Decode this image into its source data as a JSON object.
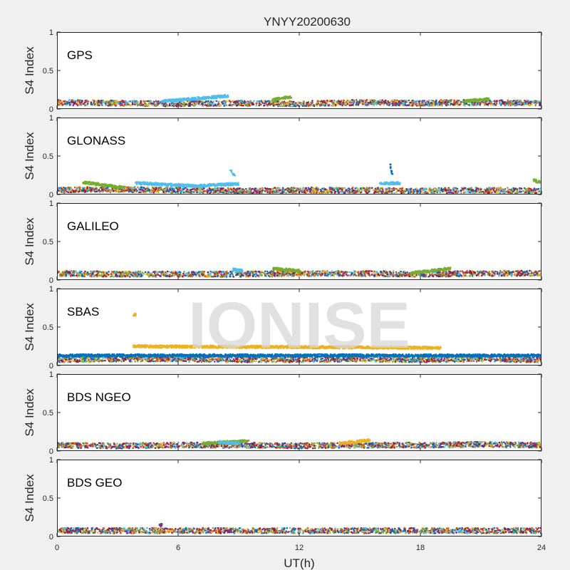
{
  "title": "YNYY20200630",
  "watermark": "IONISE",
  "chart_data": {
    "type": "scatter",
    "title": "YNYY20200630",
    "xlabel": "UT(h)",
    "ylabel": "S4 Index",
    "xlim": [
      0,
      24
    ],
    "ylim": [
      0,
      1
    ],
    "x_ticks": [
      "0",
      "6",
      "12",
      "18",
      "24"
    ],
    "y_ticks": [
      "0",
      "0.5",
      "1"
    ],
    "grid": false,
    "series_colors": [
      "#0072BD",
      "#D95319",
      "#EDB120",
      "#7E2F8E",
      "#77AC30",
      "#4DBEEE",
      "#A2142F"
    ],
    "panels": [
      {
        "label": "GPS",
        "baseline": [
          [
            0,
            0.09
          ],
          [
            3,
            0.08
          ],
          [
            6,
            0.07
          ],
          [
            9,
            0.08
          ],
          [
            12,
            0.07
          ],
          [
            15,
            0.09
          ],
          [
            18,
            0.08
          ],
          [
            21,
            0.09
          ],
          [
            24,
            0.08
          ]
        ],
        "features": [
          {
            "color": "#4DBEEE",
            "x": [
              5.2,
              8.5
            ],
            "y": [
              0.1,
              0.17
            ]
          },
          {
            "color": "#77AC30",
            "x": [
              10.7,
              11.6
            ],
            "y": [
              0.12,
              0.16
            ]
          },
          {
            "color": "#77AC30",
            "x": [
              20.2,
              21.4
            ],
            "y": [
              0.1,
              0.13
            ]
          }
        ]
      },
      {
        "label": "GLONASS",
        "baseline": [
          [
            0,
            0.06
          ],
          [
            3,
            0.07
          ],
          [
            6,
            0.06
          ],
          [
            9,
            0.05
          ],
          [
            12,
            0.06
          ],
          [
            15,
            0.06
          ],
          [
            18,
            0.05
          ],
          [
            21,
            0.06
          ],
          [
            24,
            0.05
          ]
        ],
        "features": [
          {
            "color": "#77AC30",
            "x": [
              1.3,
              3.3
            ],
            "y": [
              0.16,
              0.09
            ]
          },
          {
            "color": "#4DBEEE",
            "x": [
              3.9,
              6.9
            ],
            "y": [
              0.15,
              0.11
            ]
          },
          {
            "color": "#4DBEEE",
            "x": [
              6.9,
              9.0
            ],
            "y": [
              0.11,
              0.14
            ]
          },
          {
            "color": "#4DBEEE",
            "x": [
              8.6,
              8.8
            ],
            "y": [
              0.32,
              0.24
            ]
          },
          {
            "color": "#0072BD",
            "x": [
              16.5,
              16.6
            ],
            "y": [
              0.4,
              0.25
            ]
          },
          {
            "color": "#4DBEEE",
            "x": [
              16.0,
              17.0
            ],
            "y": [
              0.14,
              0.15
            ]
          },
          {
            "color": "#77AC30",
            "x": [
              23.6,
              24.0
            ],
            "y": [
              0.19,
              0.15
            ]
          }
        ]
      },
      {
        "label": "GALILEO",
        "baseline": [
          [
            0,
            0.09
          ],
          [
            3,
            0.08
          ],
          [
            6,
            0.08
          ],
          [
            9,
            0.08
          ],
          [
            12,
            0.09
          ],
          [
            15,
            0.09
          ],
          [
            18,
            0.08
          ],
          [
            21,
            0.09
          ],
          [
            24,
            0.09
          ]
        ],
        "features": [
          {
            "color": "#77AC30",
            "x": [
              10.7,
              12.0
            ],
            "y": [
              0.15,
              0.12
            ]
          },
          {
            "color": "#77AC30",
            "x": [
              17.5,
              19.5
            ],
            "y": [
              0.09,
              0.15
            ]
          },
          {
            "color": "#4DBEEE",
            "x": [
              8.7,
              9.2
            ],
            "y": [
              0.14,
              0.12
            ]
          }
        ]
      },
      {
        "label": "SBAS",
        "baseline": [
          [
            0,
            0.08
          ],
          [
            3,
            0.09
          ],
          [
            6,
            0.09
          ],
          [
            9,
            0.08
          ],
          [
            12,
            0.08
          ],
          [
            15,
            0.09
          ],
          [
            18,
            0.08
          ],
          [
            21,
            0.09
          ],
          [
            24,
            0.08
          ]
        ],
        "features": [
          {
            "color": "#EDB120",
            "x": [
              3.8,
              19.0
            ],
            "y": [
              0.25,
              0.23
            ]
          },
          {
            "color": "#EDB120",
            "x": [
              3.8,
              3.9
            ],
            "y": [
              0.66,
              0.66
            ]
          },
          {
            "color": "#0072BD",
            "x": [
              0,
              24
            ],
            "y": [
              0.13,
              0.13
            ]
          }
        ]
      },
      {
        "label": "BDS NGEO",
        "baseline": [
          [
            0,
            0.08
          ],
          [
            3,
            0.07
          ],
          [
            6,
            0.08
          ],
          [
            9,
            0.08
          ],
          [
            12,
            0.07
          ],
          [
            15,
            0.08
          ],
          [
            18,
            0.08
          ],
          [
            21,
            0.09
          ],
          [
            24,
            0.08
          ]
        ],
        "features": [
          {
            "color": "#77AC30",
            "x": [
              7.2,
              9.5
            ],
            "y": [
              0.1,
              0.13
            ]
          },
          {
            "color": "#EDB120",
            "x": [
              14.0,
              15.5
            ],
            "y": [
              0.1,
              0.14
            ]
          },
          {
            "color": "#4DBEEE",
            "x": [
              8.0,
              9.0
            ],
            "y": [
              0.12,
              0.1
            ]
          }
        ]
      },
      {
        "label": "BDS GEO",
        "baseline": [
          [
            0,
            0.08
          ],
          [
            6,
            0.08
          ],
          [
            12,
            0.08
          ],
          [
            18,
            0.08
          ],
          [
            24,
            0.08
          ]
        ],
        "features": [
          {
            "color": "#7E2F8E",
            "x": [
              5.1,
              5.2
            ],
            "y": [
              0.15,
              0.15
            ]
          }
        ]
      }
    ]
  }
}
